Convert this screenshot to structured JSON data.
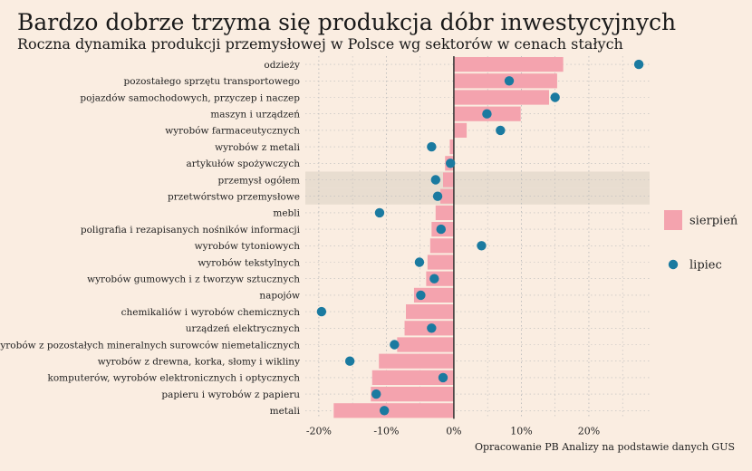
{
  "title": "Bardzo dobrze trzyma się produkcja dóbr inwestycyjnych",
  "subtitle": "Roczna dynamika produkcji przemysłowej w Polsce wg sektorów w cenach stałych",
  "caption": "Opracowanie PB Analizy na podstawie danych GUS",
  "colors": {
    "background": "#faede1",
    "bar": "#f4a3ae",
    "dot": "#1a7aa0",
    "highlight": "#e8ddd0",
    "zero_line": "#333333",
    "grid": "#bbbbbb"
  },
  "chart_data": {
    "type": "bar",
    "orientation": "horizontal",
    "xlim": [
      -22,
      29
    ],
    "xticks": [
      -20,
      -10,
      0,
      10,
      20
    ],
    "xtick_labels": [
      "-20%",
      "-10%",
      "0%",
      "10%",
      "20%"
    ],
    "grid": true,
    "legend_position": "right",
    "highlighted_categories": [
      "przemysł ogółem",
      "przetwórstwo przemysłowe"
    ],
    "categories": [
      "odzieży",
      "pozostałego sprzętu transportowego",
      "pojazdów samochodowych, przyczep i naczep",
      "maszyn i urządzeń",
      "wyrobów farmaceutycznych",
      "wyrobów z metali",
      "artykułów spożywczych",
      "przemysł ogółem",
      "przetwórstwo przemysłowe",
      "mebli",
      "poligrafia i rezapisanych nośników informacji",
      "wyrobów tytoniowych",
      "wyrobów tekstylnych",
      "wyrobów gumowych i z tworzyw sztucznych",
      "napojów",
      "chemikaliów i wyrobów chemicznych",
      "urządzeń elektrycznych",
      "wyrobów z pozostałych mineralnych surowców niemetalicznych",
      "wyrobów z drewna, korka, słomy i wikliny",
      "komputerów, wyrobów elektronicznych i optycznych",
      "papieru i wyrobów z papieru",
      "metali"
    ],
    "series": [
      {
        "name": "sierpień",
        "mark": "bar",
        "values": [
          16.2,
          15.3,
          14.1,
          9.9,
          1.9,
          -0.6,
          -1.3,
          -1.6,
          -2.0,
          -2.7,
          -3.3,
          -3.5,
          -3.9,
          -4.1,
          -5.9,
          -7.1,
          -7.3,
          -8.4,
          -11.1,
          -12.1,
          -12.3,
          -17.8
        ]
      },
      {
        "name": "lipiec",
        "mark": "dot",
        "values": [
          27.4,
          8.2,
          15.0,
          4.9,
          6.9,
          -3.3,
          -0.5,
          -2.7,
          -2.4,
          -11.0,
          -1.9,
          4.1,
          -5.1,
          -2.9,
          -4.9,
          -19.6,
          -3.3,
          -8.8,
          -15.4,
          -1.6,
          -11.5,
          -10.3
        ]
      }
    ]
  }
}
